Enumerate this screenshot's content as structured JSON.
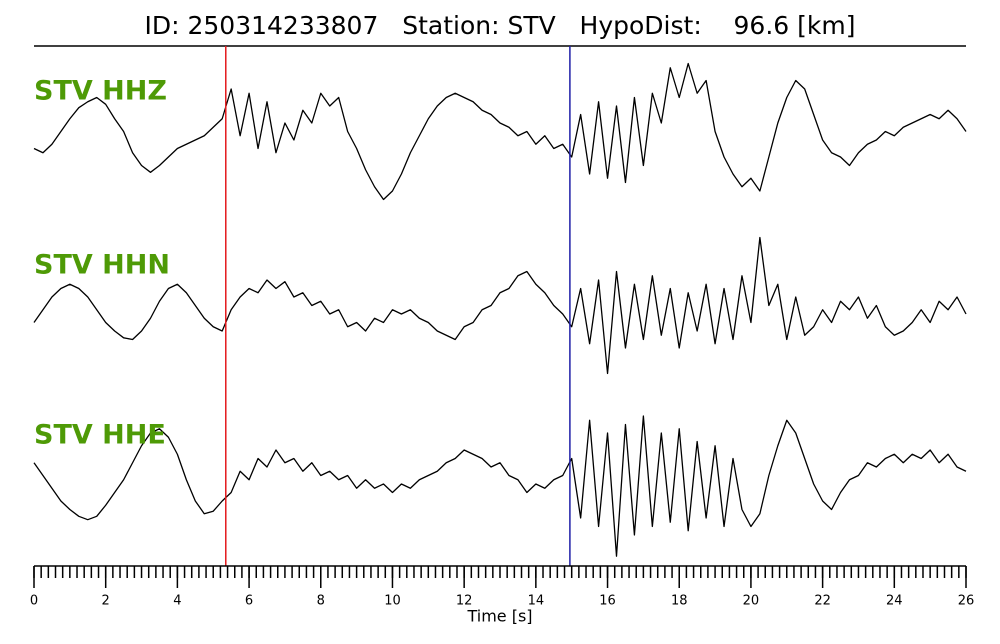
{
  "chart_data": {
    "type": "line",
    "title": "ID: 250314233807   Station: STV   HypoDist:    96.6 [km]",
    "x_label": "Time [s]",
    "xlim": [
      0,
      26
    ],
    "xticks": [
      0,
      2,
      4,
      6,
      8,
      10,
      12,
      14,
      16,
      18,
      20,
      22,
      24,
      26
    ],
    "minor_tick_interval": 0.2,
    "ylim": [
      -1,
      1
    ],
    "label_color": "#4e9a06",
    "markers": [
      {
        "x": 5.35,
        "color": "#e41a1c"
      },
      {
        "x": 14.95,
        "color": "#1f1fa8"
      }
    ],
    "x": [
      0,
      0.25,
      0.5,
      0.75,
      1,
      1.25,
      1.5,
      1.75,
      2,
      2.25,
      2.5,
      2.75,
      3,
      3.25,
      3.5,
      3.75,
      4,
      4.25,
      4.5,
      4.75,
      5,
      5.25,
      5.5,
      5.75,
      6,
      6.25,
      6.5,
      6.75,
      7,
      7.25,
      7.5,
      7.75,
      8,
      8.25,
      8.5,
      8.75,
      9,
      9.25,
      9.5,
      9.75,
      10,
      10.25,
      10.5,
      10.75,
      11,
      11.25,
      11.5,
      11.75,
      12,
      12.25,
      12.5,
      12.75,
      13,
      13.25,
      13.5,
      13.75,
      14,
      14.25,
      14.5,
      14.75,
      15,
      15.25,
      15.5,
      15.75,
      16,
      16.25,
      16.5,
      16.75,
      17,
      17.25,
      17.5,
      17.75,
      18,
      18.25,
      18.5,
      18.75,
      19,
      19.25,
      19.5,
      19.75,
      20,
      20.25,
      20.5,
      20.75,
      21,
      21.25,
      21.5,
      21.75,
      22,
      22.25,
      22.5,
      22.75,
      23,
      23.25,
      23.5,
      23.75,
      24,
      24.25,
      24.5,
      24.75,
      25,
      25.25,
      25.5,
      25.75,
      26
    ],
    "series": [
      {
        "name": "STV HHZ",
        "color": "#000000",
        "values": [
          -0.1,
          -0.15,
          -0.05,
          0.1,
          0.25,
          0.38,
          0.45,
          0.5,
          0.42,
          0.25,
          0.1,
          -0.15,
          -0.3,
          -0.38,
          -0.3,
          -0.2,
          -0.1,
          -0.05,
          0.0,
          0.05,
          0.15,
          0.25,
          0.6,
          0.05,
          0.55,
          -0.1,
          0.45,
          -0.15,
          0.2,
          0.0,
          0.35,
          0.2,
          0.55,
          0.4,
          0.5,
          0.1,
          -0.1,
          -0.35,
          -0.55,
          -0.7,
          -0.6,
          -0.4,
          -0.15,
          0.05,
          0.25,
          0.4,
          0.5,
          0.55,
          0.5,
          0.45,
          0.35,
          0.3,
          0.2,
          0.15,
          0.05,
          0.1,
          -0.05,
          0.05,
          -0.1,
          -0.05,
          -0.2,
          0.3,
          -0.4,
          0.45,
          -0.45,
          0.4,
          -0.5,
          0.5,
          -0.3,
          0.55,
          0.2,
          0.85,
          0.5,
          0.9,
          0.55,
          0.7,
          0.1,
          -0.2,
          -0.4,
          -0.55,
          -0.45,
          -0.6,
          -0.2,
          0.2,
          0.5,
          0.7,
          0.6,
          0.3,
          0.0,
          -0.15,
          -0.2,
          -0.3,
          -0.15,
          -0.05,
          0.0,
          0.1,
          0.05,
          0.15,
          0.2,
          0.25,
          0.3,
          0.25,
          0.35,
          0.25,
          0.1
        ]
      },
      {
        "name": "STV HHN",
        "color": "#000000",
        "values": [
          -0.1,
          0.05,
          0.2,
          0.3,
          0.35,
          0.3,
          0.2,
          0.05,
          -0.1,
          -0.2,
          -0.28,
          -0.3,
          -0.2,
          -0.05,
          0.15,
          0.3,
          0.35,
          0.25,
          0.1,
          -0.05,
          -0.15,
          -0.2,
          0.05,
          0.2,
          0.3,
          0.25,
          0.4,
          0.3,
          0.38,
          0.2,
          0.25,
          0.1,
          0.15,
          0.0,
          0.05,
          -0.15,
          -0.1,
          -0.2,
          -0.05,
          -0.1,
          0.05,
          0.0,
          0.05,
          -0.05,
          -0.1,
          -0.2,
          -0.25,
          -0.3,
          -0.15,
          -0.1,
          0.05,
          0.1,
          0.25,
          0.3,
          0.45,
          0.5,
          0.35,
          0.25,
          0.1,
          0.0,
          -0.15,
          0.3,
          -0.35,
          0.4,
          -0.7,
          0.5,
          -0.4,
          0.35,
          -0.3,
          0.45,
          -0.25,
          0.3,
          -0.4,
          0.25,
          -0.2,
          0.35,
          -0.35,
          0.3,
          -0.3,
          0.45,
          -0.1,
          0.9,
          0.1,
          0.35,
          -0.3,
          0.2,
          -0.25,
          -0.15,
          0.05,
          -0.1,
          0.15,
          0.05,
          0.2,
          -0.05,
          0.1,
          -0.15,
          -0.25,
          -0.2,
          -0.1,
          0.05,
          -0.1,
          0.15,
          0.05,
          0.2,
          0.0
        ]
      },
      {
        "name": "STV HHE",
        "color": "#000000",
        "values": [
          0.25,
          0.1,
          -0.05,
          -0.2,
          -0.3,
          -0.38,
          -0.42,
          -0.38,
          -0.25,
          -0.1,
          0.05,
          0.25,
          0.45,
          0.6,
          0.65,
          0.55,
          0.35,
          0.05,
          -0.2,
          -0.35,
          -0.32,
          -0.2,
          -0.1,
          0.15,
          0.05,
          0.3,
          0.2,
          0.4,
          0.25,
          0.3,
          0.15,
          0.25,
          0.1,
          0.15,
          0.05,
          0.1,
          -0.05,
          0.05,
          -0.05,
          0.0,
          -0.1,
          0.0,
          -0.05,
          0.05,
          0.1,
          0.15,
          0.25,
          0.3,
          0.4,
          0.35,
          0.3,
          0.2,
          0.25,
          0.1,
          0.05,
          -0.1,
          0.0,
          -0.05,
          0.05,
          0.1,
          0.3,
          -0.4,
          0.75,
          -0.5,
          0.6,
          -0.85,
          0.7,
          -0.6,
          0.8,
          -0.5,
          0.6,
          -0.45,
          0.65,
          -0.55,
          0.5,
          -0.4,
          0.45,
          -0.5,
          0.3,
          -0.3,
          -0.5,
          -0.35,
          0.1,
          0.45,
          0.75,
          0.6,
          0.3,
          0.0,
          -0.2,
          -0.3,
          -0.1,
          0.05,
          0.1,
          0.25,
          0.2,
          0.3,
          0.35,
          0.25,
          0.35,
          0.3,
          0.4,
          0.25,
          0.35,
          0.2,
          0.15
        ]
      }
    ]
  }
}
